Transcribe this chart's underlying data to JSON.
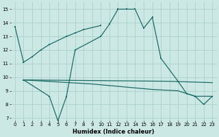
{
  "xlabel": "Humidex (Indice chaleur)",
  "xlim": [
    -0.5,
    23.5
  ],
  "ylim": [
    6.8,
    15.5
  ],
  "yticks": [
    7,
    8,
    9,
    10,
    11,
    12,
    13,
    14,
    15
  ],
  "xticks": [
    0,
    1,
    2,
    3,
    4,
    5,
    6,
    7,
    8,
    9,
    10,
    11,
    12,
    13,
    14,
    15,
    16,
    17,
    18,
    19,
    20,
    21,
    22,
    23
  ],
  "bg": "#cce8e4",
  "grid_color": "#aacfcb",
  "line_color": "#1c6b65",
  "line1_x": [
    0,
    1,
    2,
    3,
    4,
    6,
    7,
    8,
    10
  ],
  "line1_y": [
    13.7,
    11.1,
    11.5,
    12.0,
    12.4,
    13.0,
    13.25,
    13.5,
    13.8
  ],
  "line2_x": [
    1,
    4,
    5,
    6,
    7,
    10,
    11,
    12,
    13,
    14,
    15,
    16,
    17,
    19,
    20,
    21,
    22,
    23
  ],
  "line2_y": [
    9.8,
    8.6,
    6.8,
    8.6,
    12.0,
    13.0,
    13.9,
    15.0,
    15.0,
    15.0,
    13.6,
    14.4,
    11.4,
    9.7,
    8.8,
    8.6,
    8.0,
    8.6
  ],
  "line3_x": [
    1,
    18,
    23
  ],
  "line3_y": [
    9.8,
    9.7,
    9.6
  ],
  "line4_x": [
    1,
    9,
    16,
    19,
    20,
    21,
    22,
    23
  ],
  "line4_y": [
    9.8,
    9.5,
    9.1,
    9.0,
    8.8,
    8.6,
    8.6,
    8.6
  ]
}
